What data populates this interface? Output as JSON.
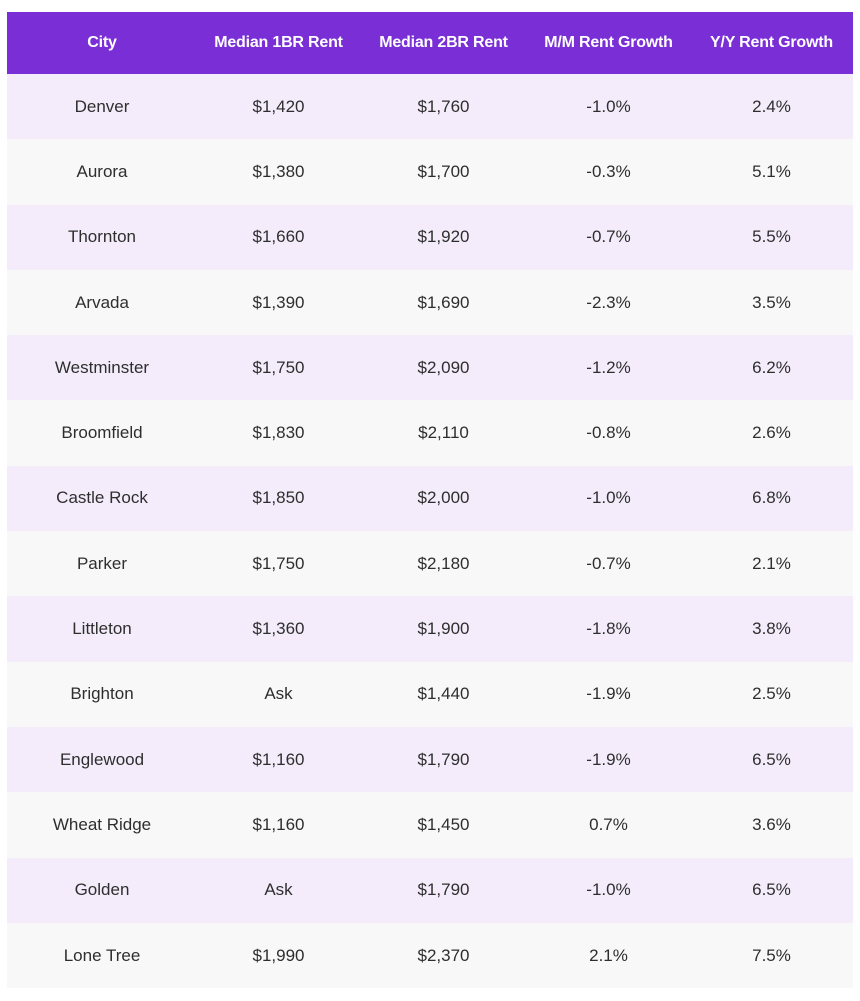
{
  "columns": [
    "City",
    "Median 1BR Rent",
    "Median 2BR Rent",
    "M/M Rent Growth",
    "Y/Y Rent Growth"
  ],
  "rows": [
    [
      "Denver",
      "$1,420",
      "$1,760",
      "-1.0%",
      "2.4%"
    ],
    [
      "Aurora",
      "$1,380",
      "$1,700",
      "-0.3%",
      "5.1%"
    ],
    [
      "Thornton",
      "$1,660",
      "$1,920",
      "-0.7%",
      "5.5%"
    ],
    [
      "Arvada",
      "$1,390",
      "$1,690",
      "-2.3%",
      "3.5%"
    ],
    [
      "Westminster",
      "$1,750",
      "$2,090",
      "-1.2%",
      "6.2%"
    ],
    [
      "Broomfield",
      "$1,830",
      "$2,110",
      "-0.8%",
      "2.6%"
    ],
    [
      "Castle Rock",
      "$1,850",
      "$2,000",
      "-1.0%",
      "6.8%"
    ],
    [
      "Parker",
      "$1,750",
      "$2,180",
      "-0.7%",
      "2.1%"
    ],
    [
      "Littleton",
      "$1,360",
      "$1,900",
      "-1.8%",
      "3.8%"
    ],
    [
      "Brighton",
      "Ask",
      "$1,440",
      "-1.9%",
      "2.5%"
    ],
    [
      "Englewood",
      "$1,160",
      "$1,790",
      "-1.9%",
      "6.5%"
    ],
    [
      "Wheat Ridge",
      "$1,160",
      "$1,450",
      "0.7%",
      "3.6%"
    ],
    [
      "Golden",
      "Ask",
      "$1,790",
      "-1.0%",
      "6.5%"
    ],
    [
      "Lone Tree",
      "$1,990",
      "$2,370",
      "2.1%",
      "7.5%"
    ]
  ],
  "colors": {
    "header_bg": "#7a2ed6",
    "header_text": "#ffffff",
    "row_odd": "#f4ecfb",
    "row_even": "#f8f8f8"
  }
}
